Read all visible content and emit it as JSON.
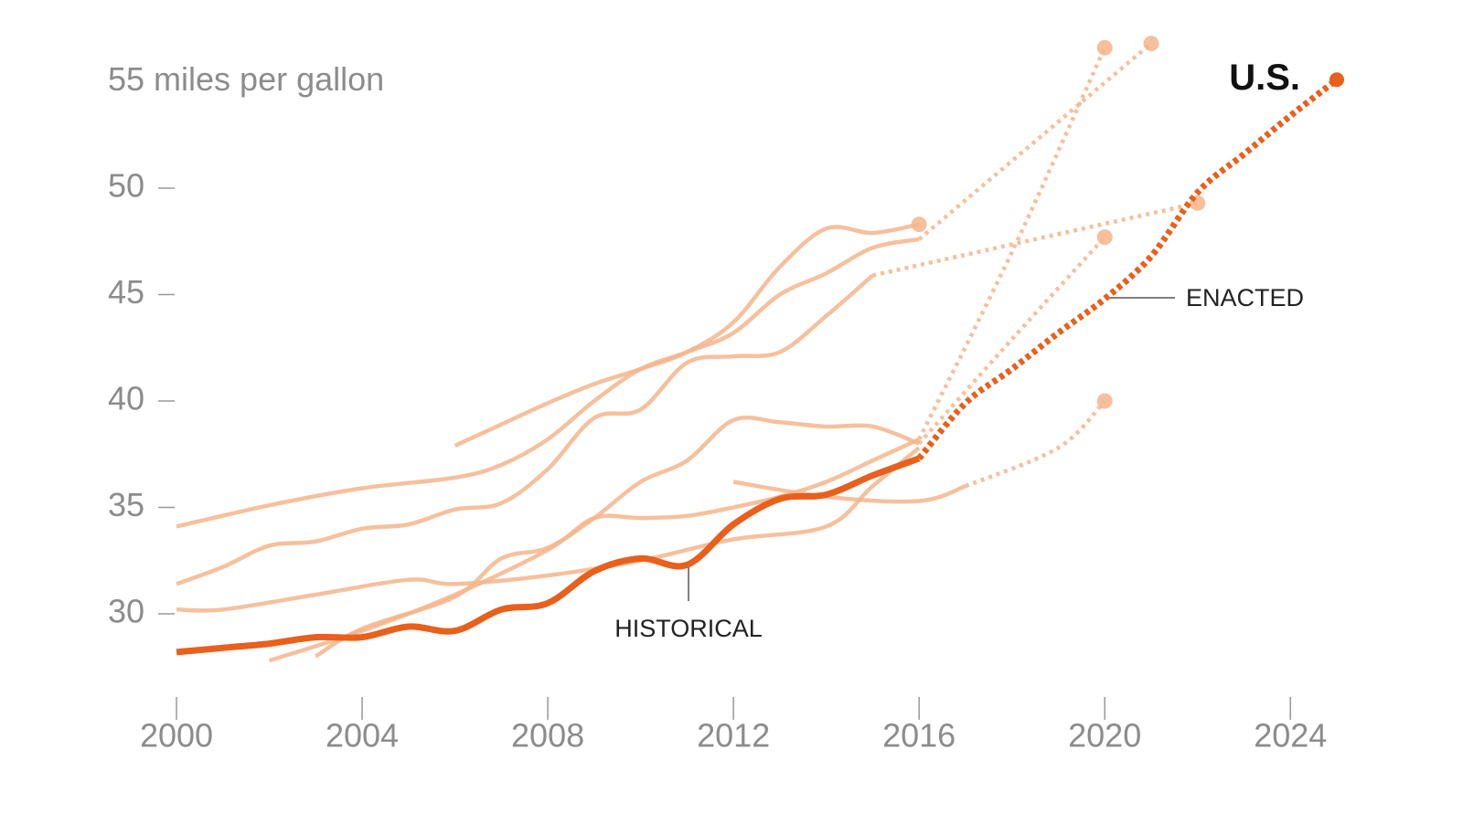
{
  "chart_data": {
    "type": "line",
    "xlim": [
      2000,
      2025
    ],
    "xticks": [
      2000,
      2004,
      2008,
      2012,
      2016,
      2020,
      2024
    ],
    "ylim": [
      26.2,
      58.8
    ],
    "yticks": [
      30,
      35,
      40,
      45,
      {
        "value": 55,
        "label": "55 miles per gallon"
      },
      50
    ],
    "annotations": [
      "HISTORICAL",
      "ENACTED"
    ],
    "series": [
      {
        "color": "#f4b58c",
        "style": "solid",
        "x": [
          2000,
          2002,
          2004,
          2006,
          2007,
          2008,
          2009,
          2010,
          2011,
          2012,
          2013,
          2014,
          2015,
          2016
        ],
        "values": [
          34.1,
          35.1,
          35.9,
          36.4,
          37.0,
          38.2,
          40.0,
          41.5,
          42.3,
          43.2,
          45.0,
          46.0,
          47.2,
          47.6
        ]
      },
      {
        "color": "#f4b58c",
        "style": "dotted",
        "x": [
          2016,
          2021
        ],
        "values": [
          47.6,
          56.8
        ],
        "end_marker": true
      },
      {
        "color": "#f4b58c",
        "style": "solid",
        "x": [
          2006,
          2007,
          2008,
          2009,
          2010,
          2011,
          2012,
          2013,
          2014,
          2015,
          2016
        ],
        "values": [
          37.9,
          38.9,
          39.9,
          40.8,
          41.5,
          42.3,
          43.7,
          46.3,
          48.1,
          47.9,
          48.3
        ],
        "end_marker": true
      },
      {
        "color": "#f4b58c",
        "style": "solid",
        "x": [
          2000,
          2001,
          2002,
          2003,
          2004,
          2005,
          2006,
          2007,
          2008,
          2009,
          2010,
          2011,
          2012,
          2013,
          2014,
          2015
        ],
        "values": [
          31.4,
          32.2,
          33.2,
          33.4,
          34.0,
          34.2,
          34.9,
          35.2,
          36.8,
          39.2,
          39.6,
          41.8,
          42.1,
          42.3,
          44.0,
          45.9
        ]
      },
      {
        "color": "#f4b58c",
        "style": "dotted",
        "x": [
          2015,
          2022
        ],
        "values": [
          45.9,
          49.3
        ],
        "end_marker": true
      },
      {
        "color": "#f4b58c",
        "style": "solid",
        "x": [
          2002,
          2004,
          2006,
          2008,
          2009,
          2010,
          2011,
          2012,
          2013,
          2014,
          2015,
          2016
        ],
        "values": [
          27.8,
          29.2,
          30.9,
          33.0,
          34.5,
          34.5,
          34.6,
          35.0,
          35.5,
          36.2,
          37.2,
          38.2
        ]
      },
      {
        "color": "#f4b58c",
        "style": "dotted",
        "x": [
          2016,
          2018,
          2020
        ],
        "values": [
          38.2,
          47.0,
          56.6
        ],
        "end_marker": true
      },
      {
        "color": "#f4b58c",
        "style": "solid",
        "x": [
          2003,
          2004,
          2006,
          2007,
          2008,
          2009,
          2010,
          2011,
          2012,
          2013,
          2014,
          2015,
          2016
        ],
        "values": [
          28.0,
          29.3,
          30.8,
          32.6,
          33.1,
          34.5,
          36.2,
          37.2,
          39.1,
          39.0,
          38.8,
          38.8,
          38.0
        ]
      },
      {
        "color": "#f4b58c",
        "style": "dotted",
        "x": [
          2016,
          2018,
          2020
        ],
        "values": [
          38.0,
          42.9,
          47.7
        ],
        "end_marker": true
      },
      {
        "color": "#f4b58c",
        "style": "solid",
        "x": [
          2000,
          2001,
          2003,
          2005,
          2006,
          2008,
          2010,
          2012,
          2014,
          2015,
          2016
        ],
        "values": [
          30.2,
          30.2,
          30.9,
          31.6,
          31.4,
          31.8,
          32.5,
          33.5,
          34.1,
          36.0,
          37.8
        ]
      },
      {
        "color": "#f4b58c",
        "style": "solid",
        "x": [
          2012,
          2014,
          2016,
          2017
        ],
        "values": [
          36.2,
          35.5,
          35.3,
          36.0
        ]
      },
      {
        "color": "#f4b58c",
        "style": "dotted",
        "x": [
          2017,
          2019,
          2020
        ],
        "values": [
          36.0,
          37.8,
          40.0
        ],
        "end_marker": true
      },
      {
        "color": "#e8601c",
        "style": "solid",
        "width": 7,
        "x": [
          2000,
          2001,
          2002,
          2003,
          2004,
          2005,
          2006,
          2007,
          2008,
          2009,
          2010,
          2011,
          2012,
          2013,
          2014,
          2015,
          2016
        ],
        "values": [
          28.2,
          28.4,
          28.6,
          28.9,
          28.9,
          29.4,
          29.2,
          30.2,
          30.5,
          32.0,
          32.6,
          32.3,
          34.2,
          35.4,
          35.6,
          36.5,
          37.3
        ]
      },
      {
        "name": "U.S.",
        "color": "#e8601c",
        "style": "dotted",
        "width": 7,
        "x": [
          2016,
          2017,
          2018,
          2019,
          2020,
          2021,
          2022,
          2023,
          2024,
          2025
        ],
        "values": [
          37.3,
          39.9,
          41.5,
          43.2,
          44.8,
          46.8,
          49.8,
          51.6,
          53.4,
          55.1
        ],
        "end_marker": true
      }
    ]
  }
}
